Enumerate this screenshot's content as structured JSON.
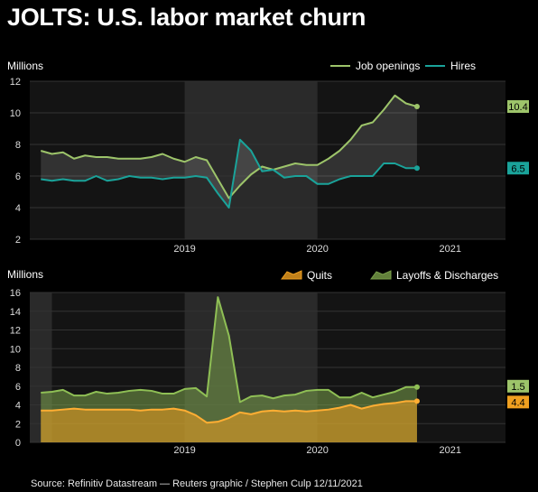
{
  "title": "JOLTS: U.S. labor market churn",
  "source": "Source: Refinitiv Datastream — Reuters graphic / Stephen Culp 12/11/2021",
  "colors": {
    "openings": "#9dc46a",
    "hires": "#1aa39a",
    "quits": "#f0a020",
    "layoffs": "#7aa04a",
    "band": "#2a2a2a"
  },
  "chart_data": [
    {
      "type": "line",
      "unit_label": "Millions",
      "x_ticks": [
        "2019",
        "2020",
        "2021"
      ],
      "ylim": [
        2,
        12
      ],
      "y_ticks": [
        "2",
        "4",
        "6",
        "8",
        "10",
        "12"
      ],
      "x_range_months": [
        "2018-05",
        "2021-12"
      ],
      "series": [
        {
          "name": "Job openings",
          "end_label": "10.4",
          "points": [
            [
              "2018-06",
              7.6
            ],
            [
              "2018-07",
              7.4
            ],
            [
              "2018-08",
              7.5
            ],
            [
              "2018-09",
              7.1
            ],
            [
              "2018-10",
              7.3
            ],
            [
              "2018-11",
              7.2
            ],
            [
              "2018-12",
              7.2
            ],
            [
              "2019-01",
              7.1
            ],
            [
              "2019-02",
              7.1
            ],
            [
              "2019-03",
              7.1
            ],
            [
              "2019-04",
              7.2
            ],
            [
              "2019-05",
              7.4
            ],
            [
              "2019-06",
              7.1
            ],
            [
              "2019-07",
              6.9
            ],
            [
              "2019-08",
              7.2
            ],
            [
              "2019-09",
              7.0
            ],
            [
              "2019-10",
              5.8
            ],
            [
              "2019-11",
              4.6
            ],
            [
              "2019-12",
              5.4
            ],
            [
              "2020-01",
              6.1
            ],
            [
              "2020-02",
              6.6
            ],
            [
              "2020-03",
              6.4
            ],
            [
              "2020-04",
              6.6
            ],
            [
              "2020-05",
              6.8
            ],
            [
              "2020-06",
              6.7
            ],
            [
              "2020-07",
              6.7
            ],
            [
              "2020-08",
              7.1
            ],
            [
              "2020-09",
              7.6
            ],
            [
              "2020-10",
              8.3
            ],
            [
              "2020-11",
              9.2
            ],
            [
              "2020-12",
              9.4
            ],
            [
              "2021-01",
              10.2
            ],
            [
              "2021-02",
              11.1
            ],
            [
              "2021-03",
              10.6
            ],
            [
              "2021-04",
              10.4
            ]
          ]
        },
        {
          "name": "Hires",
          "end_label": "6.5",
          "points": [
            [
              "2018-06",
              5.8
            ],
            [
              "2018-07",
              5.7
            ],
            [
              "2018-08",
              5.8
            ],
            [
              "2018-09",
              5.7
            ],
            [
              "2018-10",
              5.7
            ],
            [
              "2018-11",
              6.0
            ],
            [
              "2018-12",
              5.7
            ],
            [
              "2019-01",
              5.8
            ],
            [
              "2019-02",
              6.0
            ],
            [
              "2019-03",
              5.9
            ],
            [
              "2019-04",
              5.9
            ],
            [
              "2019-05",
              5.8
            ],
            [
              "2019-06",
              5.9
            ],
            [
              "2019-07",
              5.9
            ],
            [
              "2019-08",
              6.0
            ],
            [
              "2019-09",
              5.9
            ],
            [
              "2019-10",
              4.9
            ],
            [
              "2019-11",
              4.0
            ],
            [
              "2019-12",
              8.3
            ],
            [
              "2020-01",
              7.6
            ],
            [
              "2020-02",
              6.3
            ],
            [
              "2020-03",
              6.4
            ],
            [
              "2020-04",
              5.9
            ],
            [
              "2020-05",
              6.0
            ],
            [
              "2020-06",
              6.0
            ],
            [
              "2020-07",
              5.5
            ],
            [
              "2020-08",
              5.5
            ],
            [
              "2020-09",
              5.8
            ],
            [
              "2020-10",
              6.0
            ],
            [
              "2020-11",
              6.0
            ],
            [
              "2020-12",
              6.0
            ],
            [
              "2021-01",
              6.8
            ],
            [
              "2021-02",
              6.8
            ],
            [
              "2021-03",
              6.5
            ],
            [
              "2021-04",
              6.5
            ]
          ]
        }
      ]
    },
    {
      "type": "area",
      "unit_label": "Millions",
      "x_ticks": [
        "2019",
        "2020",
        "2021"
      ],
      "ylim": [
        0,
        16
      ],
      "y_ticks": [
        "0",
        "2",
        "4",
        "6",
        "8",
        "10",
        "12",
        "14",
        "16"
      ],
      "x_range_months": [
        "2018-05",
        "2021-12"
      ],
      "series": [
        {
          "name": "Quits",
          "end_label": "4.4",
          "points": [
            [
              "2018-06",
              3.4
            ],
            [
              "2018-07",
              3.4
            ],
            [
              "2018-08",
              3.5
            ],
            [
              "2018-09",
              3.6
            ],
            [
              "2018-10",
              3.5
            ],
            [
              "2018-11",
              3.5
            ],
            [
              "2018-12",
              3.5
            ],
            [
              "2019-01",
              3.5
            ],
            [
              "2019-02",
              3.5
            ],
            [
              "2019-03",
              3.4
            ],
            [
              "2019-04",
              3.5
            ],
            [
              "2019-05",
              3.5
            ],
            [
              "2019-06",
              3.6
            ],
            [
              "2019-07",
              3.4
            ],
            [
              "2019-08",
              2.9
            ],
            [
              "2019-09",
              2.1
            ],
            [
              "2019-10",
              2.2
            ],
            [
              "2019-11",
              2.6
            ],
            [
              "2019-12",
              3.2
            ],
            [
              "2020-01",
              3.0
            ],
            [
              "2020-02",
              3.3
            ],
            [
              "2020-03",
              3.4
            ],
            [
              "2020-04",
              3.3
            ],
            [
              "2020-05",
              3.4
            ],
            [
              "2020-06",
              3.3
            ],
            [
              "2020-07",
              3.4
            ],
            [
              "2020-08",
              3.5
            ],
            [
              "2020-09",
              3.7
            ],
            [
              "2020-10",
              4.0
            ],
            [
              "2020-11",
              3.6
            ],
            [
              "2020-12",
              3.9
            ],
            [
              "2021-01",
              4.1
            ],
            [
              "2021-02",
              4.2
            ],
            [
              "2021-03",
              4.4
            ],
            [
              "2021-04",
              4.4
            ]
          ]
        },
        {
          "name": "Layoffs & Discharges",
          "end_label": "1.5",
          "points": [
            [
              "2018-06",
              5.3
            ],
            [
              "2018-07",
              5.4
            ],
            [
              "2018-08",
              5.6
            ],
            [
              "2018-09",
              5.0
            ],
            [
              "2018-10",
              5.0
            ],
            [
              "2018-11",
              5.4
            ],
            [
              "2018-12",
              5.2
            ],
            [
              "2019-01",
              5.3
            ],
            [
              "2019-02",
              5.5
            ],
            [
              "2019-03",
              5.6
            ],
            [
              "2019-04",
              5.5
            ],
            [
              "2019-05",
              5.2
            ],
            [
              "2019-06",
              5.2
            ],
            [
              "2019-07",
              5.7
            ],
            [
              "2019-08",
              5.8
            ],
            [
              "2019-09",
              4.9
            ],
            [
              "2019-10",
              15.5
            ],
            [
              "2019-11",
              11.4
            ],
            [
              "2019-12",
              4.3
            ],
            [
              "2020-01",
              4.9
            ],
            [
              "2020-02",
              5.0
            ],
            [
              "2020-03",
              4.7
            ],
            [
              "2020-04",
              5.0
            ],
            [
              "2020-05",
              5.1
            ],
            [
              "2020-06",
              5.5
            ],
            [
              "2020-07",
              5.6
            ],
            [
              "2020-08",
              5.6
            ],
            [
              "2020-09",
              4.8
            ],
            [
              "2020-10",
              4.8
            ],
            [
              "2020-11",
              5.3
            ],
            [
              "2020-12",
              4.8
            ],
            [
              "2021-01",
              5.1
            ],
            [
              "2021-02",
              5.4
            ],
            [
              "2021-03",
              5.9
            ],
            [
              "2021-04",
              5.9
            ]
          ]
        }
      ]
    }
  ]
}
